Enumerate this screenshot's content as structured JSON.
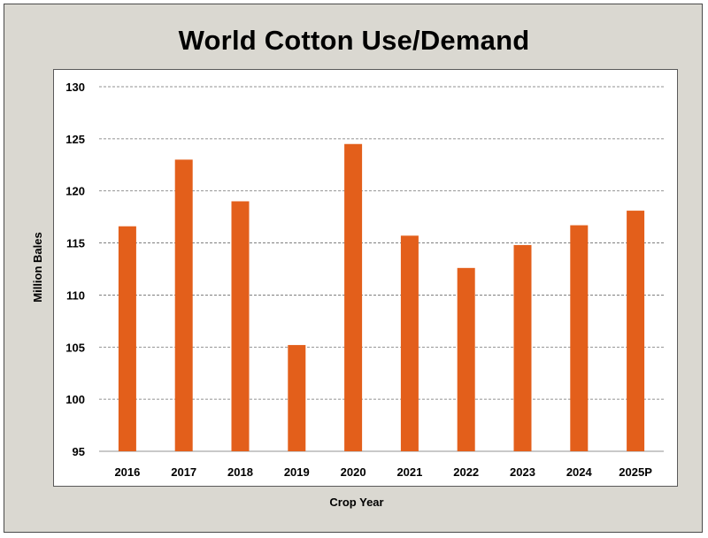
{
  "chart_data": {
    "type": "bar",
    "title": "World Cotton Use/Demand",
    "xlabel": "Crop Year",
    "ylabel": "Million Bales",
    "categories": [
      "2016",
      "2017",
      "2018",
      "2019",
      "2020",
      "2021",
      "2022",
      "2023",
      "2024",
      "2025P"
    ],
    "values": [
      116.6,
      123.0,
      119.0,
      105.2,
      124.5,
      115.7,
      112.6,
      114.8,
      116.7,
      118.1
    ],
    "ylim": [
      95,
      130
    ],
    "yticks": [
      "95",
      "100",
      "105",
      "110",
      "115",
      "120",
      "125",
      "130"
    ],
    "grid": true,
    "bar_color": "#e35f1b"
  }
}
